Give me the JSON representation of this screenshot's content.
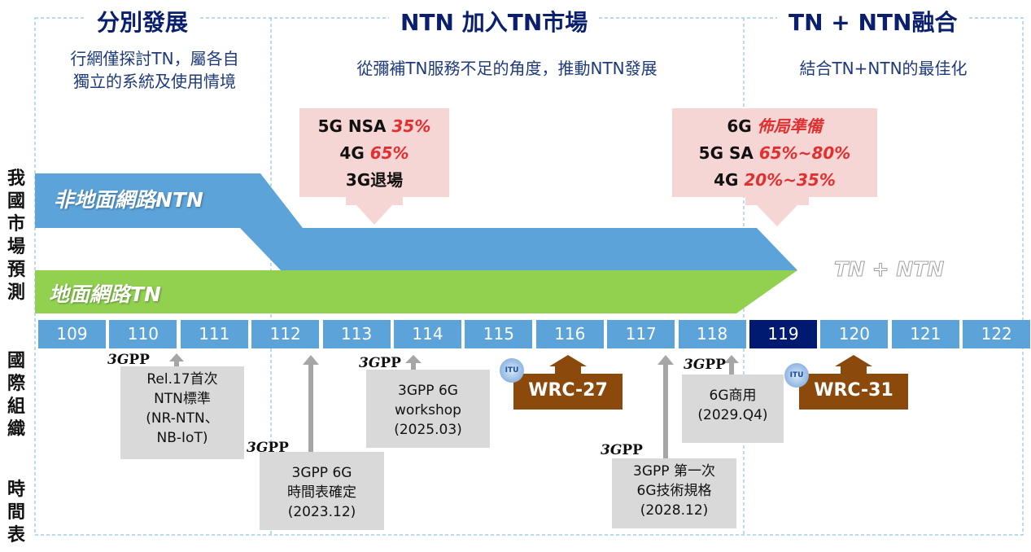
{
  "sections": [
    {
      "title": "分別發展",
      "subtitle_lines": [
        "行網僅探討TN，屬各自",
        "獨立的系統及使用情境"
      ]
    },
    {
      "title": "NTN 加入TN市場",
      "subtitle_lines": [
        "從彌補TN服務不足的角度，推動NTN發展"
      ]
    },
    {
      "title": "TN + NTN融合",
      "subtitle_lines": [
        "結合TN+NTN的最佳化"
      ]
    }
  ],
  "forecast_boxes": [
    {
      "lines": [
        {
          "label": "5G NSA ",
          "pct": "35%"
        },
        {
          "label": "4G ",
          "pct": "65%"
        },
        {
          "label": "3G退場",
          "pct": ""
        }
      ]
    },
    {
      "lines": [
        {
          "label": "6G ",
          "pct": "佈局準備"
        },
        {
          "label": "5G SA ",
          "pct": "65%~80%"
        },
        {
          "label": "4G ",
          "pct": "20%~35%"
        }
      ]
    }
  ],
  "bands": {
    "ntn": "非地面網路NTN",
    "tn": "地面網路TN",
    "merged": "TN + NTN"
  },
  "side_labels": {
    "market": "我國市場預測",
    "org": "國際組織",
    "timeline": "時間表"
  },
  "years": [
    "109",
    "110",
    "111",
    "112",
    "113",
    "114",
    "115",
    "116",
    "117",
    "118",
    "119",
    "120",
    "121",
    "122"
  ],
  "current_year": "119",
  "milestones": [
    {
      "lines": [
        "Rel.17首次",
        "NTN標準",
        "(NR-NTN、",
        "NB-IoT)"
      ]
    },
    {
      "lines": [
        "3GPP 6G",
        "時間表確定",
        "(2023.12)"
      ]
    },
    {
      "lines": [
        "3GPP 6G",
        "workshop",
        "(2025.03)"
      ]
    },
    {
      "lines": [
        "3GPP 第一次",
        "6G技術規格",
        "(2028.12)"
      ]
    },
    {
      "lines": [
        "6G商用",
        "(2029.Q4)"
      ]
    }
  ],
  "wrc": [
    "WRC-27",
    "WRC-31"
  ],
  "logos": {
    "threegpp": "3GPP",
    "itu": "ITU"
  },
  "colors": {
    "ntn": "#5ba3d9",
    "tn": "#92d050",
    "current": "#001a72",
    "wrc": "#8b4a0c",
    "pink": "#f6d5d5",
    "title": "#0a1f6e"
  }
}
